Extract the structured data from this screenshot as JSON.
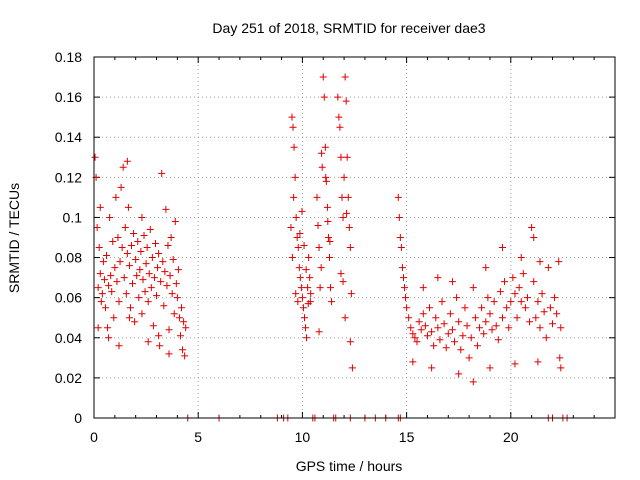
{
  "chart_data": {
    "type": "scatter",
    "title": "Day 251 of 2018, SRMTID for receiver dae3",
    "xlabel": "GPS time / hours",
    "ylabel": "SRMTID / TECUs",
    "xlim": [
      0,
      25
    ],
    "ylim": [
      0,
      0.18
    ],
    "x_ticks": [
      {
        "value": 0,
        "label": "0"
      },
      {
        "value": 5,
        "label": "5"
      },
      {
        "value": 10,
        "label": "10"
      },
      {
        "value": 15,
        "label": "15"
      },
      {
        "value": 20,
        "label": "20"
      }
    ],
    "y_ticks": [
      {
        "value": 0,
        "label": "0"
      },
      {
        "value": 0.02,
        "label": "0.02"
      },
      {
        "value": 0.04,
        "label": "0.04"
      },
      {
        "value": 0.06,
        "label": "0.06"
      },
      {
        "value": 0.08,
        "label": "0.08"
      },
      {
        "value": 0.1,
        "label": "0.1"
      },
      {
        "value": 0.12,
        "label": "0.12"
      },
      {
        "value": 0.14,
        "label": "0.14"
      },
      {
        "value": 0.16,
        "label": "0.16"
      },
      {
        "value": 0.18,
        "label": "0.18"
      }
    ],
    "grid": true,
    "marker": "+",
    "color": "#e00000",
    "series": [
      {
        "name": "SRMTID",
        "points": [
          [
            0.05,
            0.13
          ],
          [
            0.1,
            0.12
          ],
          [
            0.15,
            0.095
          ],
          [
            0.2,
            0.065
          ],
          [
            0.25,
            0.085
          ],
          [
            0.3,
            0.072
          ],
          [
            0.35,
            0.058
          ],
          [
            0.4,
            0.062
          ],
          [
            0.45,
            0.078
          ],
          [
            0.5,
            0.069
          ],
          [
            0.55,
            0.055
          ],
          [
            0.6,
            0.081
          ],
          [
            0.65,
            0.045
          ],
          [
            0.7,
            0.066
          ],
          [
            0.75,
            0.1
          ],
          [
            0.8,
            0.071
          ],
          [
            0.85,
            0.063
          ],
          [
            0.9,
            0.088
          ],
          [
            0.95,
            0.05
          ],
          [
            1.0,
            0.075
          ],
          [
            1.05,
            0.11
          ],
          [
            1.1,
            0.068
          ],
          [
            1.15,
            0.09
          ],
          [
            1.2,
            0.058
          ],
          [
            1.25,
            0.078
          ],
          [
            1.3,
            0.115
          ],
          [
            1.35,
            0.085
          ],
          [
            1.4,
            0.125
          ],
          [
            1.45,
            0.07
          ],
          [
            1.5,
            0.095
          ],
          [
            1.55,
            0.062
          ],
          [
            1.6,
            0.082
          ],
          [
            1.65,
            0.105
          ],
          [
            1.7,
            0.076
          ],
          [
            1.75,
            0.055
          ],
          [
            1.8,
            0.086
          ],
          [
            1.85,
            0.067
          ],
          [
            1.9,
            0.092
          ],
          [
            1.95,
            0.048
          ],
          [
            2.0,
            0.079
          ],
          [
            2.05,
            0.071
          ],
          [
            2.1,
            0.088
          ],
          [
            2.15,
            0.06
          ],
          [
            2.2,
            0.074
          ],
          [
            2.25,
            0.083
          ],
          [
            2.3,
            0.052
          ],
          [
            2.35,
            0.069
          ],
          [
            2.4,
            0.091
          ],
          [
            2.45,
            0.063
          ],
          [
            2.5,
            0.077
          ],
          [
            2.55,
            0.085
          ],
          [
            2.6,
            0.058
          ],
          [
            2.65,
            0.072
          ],
          [
            2.7,
            0.094
          ],
          [
            2.75,
            0.065
          ],
          [
            2.8,
            0.08
          ],
          [
            2.85,
            0.046
          ],
          [
            2.9,
            0.07
          ],
          [
            2.95,
            0.087
          ],
          [
            3.0,
            0.061
          ],
          [
            3.05,
            0.075
          ],
          [
            3.1,
            0.082
          ],
          [
            3.15,
            0.036
          ],
          [
            3.2,
            0.068
          ],
          [
            3.25,
            0.122
          ],
          [
            3.3,
            0.078
          ],
          [
            3.35,
            0.056
          ],
          [
            3.4,
            0.073
          ],
          [
            3.45,
            0.104
          ],
          [
            3.5,
            0.066
          ],
          [
            3.55,
            0.086
          ],
          [
            3.6,
            0.044
          ],
          [
            3.65,
            0.071
          ],
          [
            3.7,
            0.09
          ],
          [
            3.75,
            0.062
          ],
          [
            3.8,
            0.079
          ],
          [
            3.85,
            0.052
          ],
          [
            3.9,
            0.098
          ],
          [
            3.95,
            0.067
          ],
          [
            4.0,
            0.06
          ],
          [
            4.05,
            0.074
          ],
          [
            4.1,
            0.05
          ],
          [
            4.15,
            0.041
          ],
          [
            4.2,
            0.055
          ],
          [
            4.25,
            0.034
          ],
          [
            4.3,
            0.048
          ],
          [
            4.35,
            0.031
          ],
          [
            4.4,
            0.045
          ],
          [
            0.2,
            0.045
          ],
          [
            0.7,
            0.04
          ],
          [
            1.2,
            0.036
          ],
          [
            1.7,
            0.05
          ],
          [
            2.6,
            0.038
          ],
          [
            3.1,
            0.041
          ],
          [
            3.6,
            0.032
          ],
          [
            0.3,
            0.105
          ],
          [
            1.6,
            0.128
          ],
          [
            2.3,
            0.1
          ],
          [
            9.5,
            0.15
          ],
          [
            9.55,
            0.145
          ],
          [
            9.6,
            0.135
          ],
          [
            9.65,
            0.12
          ],
          [
            9.7,
            0.1
          ],
          [
            9.75,
            0.09
          ],
          [
            9.8,
            0.085
          ],
          [
            9.85,
            0.075
          ],
          [
            9.9,
            0.07
          ],
          [
            9.95,
            0.065
          ],
          [
            10.0,
            0.06
          ],
          [
            10.05,
            0.055
          ],
          [
            10.1,
            0.05
          ],
          [
            10.15,
            0.045
          ],
          [
            10.2,
            0.04
          ],
          [
            10.25,
            0.065
          ],
          [
            10.3,
            0.08
          ],
          [
            10.35,
            0.07
          ],
          [
            10.4,
            0.062
          ],
          [
            9.45,
            0.095
          ],
          [
            9.52,
            0.08
          ],
          [
            9.58,
            0.11
          ],
          [
            9.68,
            0.062
          ],
          [
            9.78,
            0.058
          ],
          [
            9.88,
            0.092
          ],
          [
            9.98,
            0.103
          ],
          [
            10.08,
            0.086
          ],
          [
            10.18,
            0.074
          ],
          [
            10.28,
            0.057
          ],
          [
            10.38,
            0.058
          ],
          [
            10.7,
            0.11
          ],
          [
            10.75,
            0.096
          ],
          [
            10.8,
            0.085
          ],
          [
            10.85,
            0.065
          ],
          [
            10.9,
            0.075
          ],
          [
            10.95,
            0.125
          ],
          [
            11.0,
            0.17
          ],
          [
            11.05,
            0.16
          ],
          [
            11.1,
            0.135
          ],
          [
            11.15,
            0.118
          ],
          [
            11.2,
            0.105
          ],
          [
            11.25,
            0.09
          ],
          [
            11.3,
            0.08
          ],
          [
            11.35,
            0.065
          ],
          [
            11.4,
            0.058
          ],
          [
            10.8,
            0.043
          ],
          [
            11.12,
            0.12
          ],
          [
            11.22,
            0.098
          ],
          [
            11.32,
            0.088
          ],
          [
            10.92,
            0.132
          ],
          [
            11.7,
            0.16
          ],
          [
            11.75,
            0.15
          ],
          [
            11.8,
            0.145
          ],
          [
            11.85,
            0.13
          ],
          [
            11.9,
            0.11
          ],
          [
            11.95,
            0.1
          ],
          [
            12.0,
            0.12
          ],
          [
            12.05,
            0.17
          ],
          [
            12.1,
            0.158
          ],
          [
            12.15,
            0.13
          ],
          [
            12.2,
            0.11
          ],
          [
            12.25,
            0.095
          ],
          [
            12.3,
            0.085
          ],
          [
            12.35,
            0.062
          ],
          [
            12.4,
            0.025
          ],
          [
            12.3,
            0.038
          ],
          [
            11.95,
            0.068
          ],
          [
            12.05,
            0.05
          ],
          [
            11.85,
            0.072
          ],
          [
            12.12,
            0.102
          ],
          [
            14.6,
            0.11
          ],
          [
            14.65,
            0.1
          ],
          [
            14.7,
            0.09
          ],
          [
            14.75,
            0.085
          ],
          [
            14.8,
            0.075
          ],
          [
            14.85,
            0.07
          ],
          [
            14.9,
            0.065
          ],
          [
            14.95,
            0.06
          ],
          [
            15.0,
            0.055
          ],
          [
            15.1,
            0.05
          ],
          [
            15.2,
            0.045
          ],
          [
            15.3,
            0.042
          ],
          [
            15.4,
            0.04
          ],
          [
            15.5,
            0.038
          ],
          [
            15.6,
            0.048
          ],
          [
            15.7,
            0.044
          ],
          [
            15.8,
            0.052
          ],
          [
            15.9,
            0.046
          ],
          [
            16.0,
            0.041
          ],
          [
            16.1,
            0.055
          ],
          [
            16.2,
            0.043
          ],
          [
            16.3,
            0.036
          ],
          [
            16.4,
            0.05
          ],
          [
            16.5,
            0.045
          ],
          [
            16.6,
            0.039
          ],
          [
            16.7,
            0.058
          ],
          [
            16.8,
            0.047
          ],
          [
            16.9,
            0.035
          ],
          [
            17.0,
            0.042
          ],
          [
            17.1,
            0.052
          ],
          [
            17.2,
            0.044
          ],
          [
            17.3,
            0.038
          ],
          [
            17.4,
            0.06
          ],
          [
            17.5,
            0.048
          ],
          [
            17.6,
            0.034
          ],
          [
            17.7,
            0.041
          ],
          [
            17.8,
            0.055
          ],
          [
            17.9,
            0.046
          ],
          [
            18.0,
            0.03
          ],
          [
            18.1,
            0.04
          ],
          [
            18.2,
            0.065
          ],
          [
            18.3,
            0.05
          ],
          [
            18.4,
            0.036
          ],
          [
            18.5,
            0.045
          ],
          [
            18.6,
            0.055
          ],
          [
            18.7,
            0.042
          ],
          [
            18.8,
            0.048
          ],
          [
            18.9,
            0.06
          ],
          [
            19.0,
            0.052
          ],
          [
            19.1,
            0.044
          ],
          [
            19.2,
            0.058
          ],
          [
            19.3,
            0.046
          ],
          [
            19.4,
            0.039
          ],
          [
            19.5,
            0.063
          ],
          [
            19.6,
            0.05
          ],
          [
            19.7,
            0.068
          ],
          [
            19.8,
            0.055
          ],
          [
            19.9,
            0.045
          ],
          [
            20.0,
            0.058
          ],
          [
            20.1,
            0.07
          ],
          [
            20.2,
            0.062
          ],
          [
            20.3,
            0.05
          ],
          [
            20.4,
            0.065
          ],
          [
            20.5,
            0.058
          ],
          [
            20.6,
            0.072
          ],
          [
            20.7,
            0.055
          ],
          [
            20.8,
            0.06
          ],
          [
            20.9,
            0.048
          ],
          [
            21.0,
            0.095
          ],
          [
            21.1,
            0.068
          ],
          [
            21.2,
            0.05
          ],
          [
            21.3,
            0.058
          ],
          [
            21.4,
            0.045
          ],
          [
            21.5,
            0.062
          ],
          [
            21.6,
            0.053
          ],
          [
            21.7,
            0.04
          ],
          [
            21.8,
            0.075
          ],
          [
            21.9,
            0.055
          ],
          [
            22.0,
            0.047
          ],
          [
            22.1,
            0.06
          ],
          [
            22.2,
            0.052
          ],
          [
            22.3,
            0.078
          ],
          [
            22.35,
            0.03
          ],
          [
            22.4,
            0.045
          ],
          [
            15.3,
            0.028
          ],
          [
            16.2,
            0.025
          ],
          [
            17.5,
            0.022
          ],
          [
            18.2,
            0.018
          ],
          [
            19.0,
            0.025
          ],
          [
            20.2,
            0.027
          ],
          [
            21.3,
            0.028
          ],
          [
            22.4,
            0.025
          ],
          [
            15.8,
            0.065
          ],
          [
            16.5,
            0.07
          ],
          [
            17.2,
            0.068
          ],
          [
            18.8,
            0.075
          ],
          [
            19.6,
            0.085
          ],
          [
            20.5,
            0.08
          ],
          [
            21.1,
            0.09
          ],
          [
            21.4,
            0.078
          ]
        ]
      }
    ],
    "baseline_points_x": [
      4.5,
      6.0,
      8.8,
      9.1,
      9.3,
      10.5,
      10.6,
      11.5,
      11.6,
      12.3,
      13.0,
      13.5,
      14.0,
      14.6,
      14.7,
      21.8,
      22.0,
      22.5,
      22.7
    ]
  }
}
